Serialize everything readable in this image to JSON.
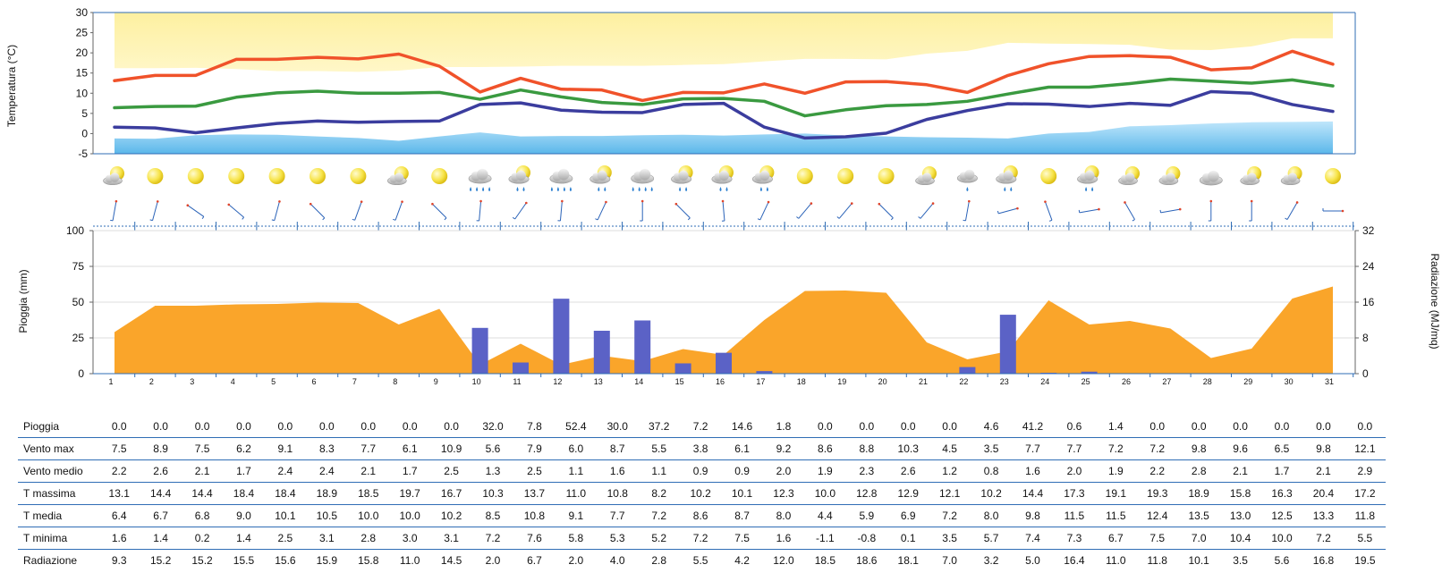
{
  "colors": {
    "tmax": "#f0522a",
    "tmed": "#3a9a40",
    "tmin": "#3b3d9e",
    "climate_max_band": "#fdf3a8",
    "climate_min_band": "#7ec8f0",
    "rain_bars": "#5b62c6",
    "radiation_area": "#faa52a",
    "row_separator": "#2f6db5"
  },
  "chart_data": [
    {
      "type": "line",
      "ylabel": "Temperatura (°C)",
      "ylim": [
        -5,
        30
      ],
      "yticks": [
        "30",
        "25",
        "20",
        "15",
        "10",
        "5",
        "0",
        "-5"
      ],
      "x": [
        1,
        2,
        3,
        4,
        5,
        6,
        7,
        8,
        9,
        10,
        11,
        12,
        13,
        14,
        15,
        16,
        17,
        18,
        19,
        20,
        21,
        22,
        23,
        24,
        25,
        26,
        27,
        28,
        29,
        30,
        31
      ],
      "series": [
        {
          "key": "tmax",
          "values": [
            13.1,
            14.4,
            14.4,
            18.4,
            18.4,
            18.9,
            18.5,
            19.7,
            16.7,
            10.3,
            13.7,
            11.0,
            10.8,
            8.2,
            10.2,
            10.1,
            12.3,
            10.0,
            12.8,
            12.9,
            12.1,
            10.2,
            14.4,
            17.3,
            19.1,
            19.3,
            18.9,
            15.8,
            16.3,
            20.4,
            17.2
          ]
        },
        {
          "key": "tmed",
          "values": [
            6.4,
            6.7,
            6.8,
            9.0,
            10.1,
            10.5,
            10.0,
            10.0,
            10.2,
            8.5,
            10.8,
            9.1,
            7.7,
            7.2,
            8.6,
            8.7,
            8.0,
            4.4,
            5.9,
            6.9,
            7.2,
            8.0,
            9.8,
            11.5,
            11.5,
            12.4,
            13.5,
            13.0,
            12.5,
            13.3,
            11.8
          ]
        },
        {
          "key": "tmin",
          "values": [
            1.6,
            1.4,
            0.2,
            1.4,
            2.5,
            3.1,
            2.8,
            3.0,
            3.1,
            7.2,
            7.6,
            5.8,
            5.3,
            5.2,
            7.2,
            7.5,
            1.6,
            -1.1,
            -0.8,
            0.1,
            3.5,
            5.7,
            7.4,
            7.3,
            6.7,
            7.5,
            7.0,
            10.4,
            10.0,
            7.2,
            5.5
          ]
        }
      ],
      "climate_max_band": {
        "top": [
          30,
          30,
          30,
          30,
          30,
          30,
          30,
          30,
          30,
          30,
          30,
          30,
          30,
          30,
          30,
          30,
          30,
          30,
          30,
          30,
          30,
          30,
          30,
          30,
          30,
          30,
          30,
          30,
          30,
          30,
          30
        ],
        "bottom": [
          16.2,
          16.2,
          16.3,
          16.0,
          15.5,
          15.5,
          15.3,
          15.6,
          16.5,
          16.5,
          16.6,
          16.8,
          16.8,
          16.8,
          17.0,
          17.2,
          17.9,
          18.5,
          18.5,
          18.4,
          19.8,
          20.5,
          22.5,
          22.3,
          22.2,
          22.0,
          20.8,
          20.7,
          21.6,
          23.6,
          23.6
        ]
      },
      "climate_min_band": {
        "top": [
          -1.2,
          -1.3,
          -0.4,
          -0.2,
          -0.3,
          -0.7,
          -1.1,
          -1.8,
          -0.7,
          0.3,
          -0.7,
          -0.6,
          -0.6,
          -0.4,
          -0.3,
          -0.5,
          -0.2,
          0.0,
          -0.5,
          -0.7,
          -0.9,
          -1.0,
          -1.2,
          0.0,
          0.4,
          1.8,
          2.1,
          2.5,
          2.8,
          2.9,
          3.0
        ],
        "bottom": [
          -5,
          -5,
          -5,
          -5,
          -5,
          -5,
          -5,
          -5,
          -5,
          -5,
          -5,
          -5,
          -5,
          -5,
          -5,
          -5,
          -5,
          -5,
          -5,
          -5,
          -5,
          -5,
          -5,
          -5,
          -5,
          -5,
          -5,
          -5,
          -5,
          -5,
          -5
        ]
      }
    },
    {
      "type": "bar",
      "ylabel": "Pioggia (mm)",
      "y2label": "Radiazione (MJ/mq)",
      "ylim": [
        0,
        100
      ],
      "y2lim": [
        0,
        32
      ],
      "yticks": [
        "100",
        "75",
        "50",
        "25",
        "0"
      ],
      "y2ticks": [
        "32",
        "24",
        "16",
        "8",
        "0"
      ],
      "categories": [
        "1",
        "2",
        "3",
        "4",
        "5",
        "6",
        "7",
        "8",
        "9",
        "10",
        "11",
        "12",
        "13",
        "14",
        "15",
        "16",
        "17",
        "18",
        "19",
        "20",
        "21",
        "22",
        "23",
        "24",
        "25",
        "26",
        "27",
        "28",
        "29",
        "30",
        "31"
      ],
      "rain_values": [
        0.0,
        0.0,
        0.0,
        0.0,
        0.0,
        0.0,
        0.0,
        0.0,
        0.0,
        32.0,
        7.8,
        52.4,
        30.0,
        37.2,
        7.2,
        14.6,
        1.8,
        0.0,
        0.0,
        0.0,
        0.0,
        4.6,
        41.2,
        0.6,
        1.4,
        0.0,
        0.0,
        0.0,
        0.0,
        0.0,
        0.0
      ],
      "radiation_values": [
        9.3,
        15.2,
        15.2,
        15.5,
        15.6,
        15.9,
        15.8,
        11.0,
        14.5,
        2.0,
        6.7,
        2.0,
        4.0,
        2.8,
        5.5,
        4.2,
        12.0,
        18.5,
        18.6,
        18.1,
        7.0,
        3.2,
        5.0,
        16.4,
        11.0,
        11.8,
        10.1,
        3.5,
        5.6,
        16.8,
        19.5
      ]
    },
    {
      "type": "table",
      "rows": [
        {
          "label": "Pioggia",
          "values": [
            "0.0",
            "0.0",
            "0.0",
            "0.0",
            "0.0",
            "0.0",
            "0.0",
            "0.0",
            "0.0",
            "32.0",
            "7.8",
            "52.4",
            "30.0",
            "37.2",
            "7.2",
            "14.6",
            "1.8",
            "0.0",
            "0.0",
            "0.0",
            "0.0",
            "4.6",
            "41.2",
            "0.6",
            "1.4",
            "0.0",
            "0.0",
            "0.0",
            "0.0",
            "0.0",
            "0.0"
          ]
        },
        {
          "label": "Vento max",
          "values": [
            "7.5",
            "8.9",
            "7.5",
            "6.2",
            "9.1",
            "8.3",
            "7.7",
            "6.1",
            "10.9",
            "5.6",
            "7.9",
            "6.0",
            "8.7",
            "5.5",
            "3.8",
            "6.1",
            "9.2",
            "8.6",
            "8.8",
            "10.3",
            "4.5",
            "3.5",
            "7.7",
            "7.7",
            "7.2",
            "7.2",
            "9.8",
            "9.6",
            "6.5",
            "9.8",
            "12.1"
          ]
        },
        {
          "label": "Vento medio",
          "values": [
            "2.2",
            "2.6",
            "2.1",
            "1.7",
            "2.4",
            "2.4",
            "2.1",
            "1.7",
            "2.5",
            "1.3",
            "2.5",
            "1.1",
            "1.6",
            "1.1",
            "0.9",
            "0.9",
            "2.0",
            "1.9",
            "2.3",
            "2.6",
            "1.2",
            "0.8",
            "1.6",
            "2.0",
            "1.9",
            "2.2",
            "2.8",
            "2.1",
            "1.7",
            "2.1",
            "2.9"
          ]
        },
        {
          "label": "T massima",
          "values": [
            "13.1",
            "14.4",
            "14.4",
            "18.4",
            "18.4",
            "18.9",
            "18.5",
            "19.7",
            "16.7",
            "10.3",
            "13.7",
            "11.0",
            "10.8",
            "8.2",
            "10.2",
            "10.1",
            "12.3",
            "10.0",
            "12.8",
            "12.9",
            "12.1",
            "10.2",
            "14.4",
            "17.3",
            "19.1",
            "19.3",
            "18.9",
            "15.8",
            "16.3",
            "20.4",
            "17.2"
          ]
        },
        {
          "label": "T media",
          "values": [
            "6.4",
            "6.7",
            "6.8",
            "9.0",
            "10.1",
            "10.5",
            "10.0",
            "10.0",
            "10.2",
            "8.5",
            "10.8",
            "9.1",
            "7.7",
            "7.2",
            "8.6",
            "8.7",
            "8.0",
            "4.4",
            "5.9",
            "6.9",
            "7.2",
            "8.0",
            "9.8",
            "11.5",
            "11.5",
            "12.4",
            "13.5",
            "13.0",
            "12.5",
            "13.3",
            "11.8"
          ]
        },
        {
          "label": "T minima",
          "values": [
            "1.6",
            "1.4",
            "0.2",
            "1.4",
            "2.5",
            "3.1",
            "2.8",
            "3.0",
            "3.1",
            "7.2",
            "7.6",
            "5.8",
            "5.3",
            "5.2",
            "7.2",
            "7.5",
            "1.6",
            "-1.1",
            "-0.8",
            "0.1",
            "3.5",
            "5.7",
            "7.4",
            "7.3",
            "6.7",
            "7.5",
            "7.0",
            "10.4",
            "10.0",
            "7.2",
            "5.5"
          ]
        },
        {
          "label": "Radiazione",
          "values": [
            "9.3",
            "15.2",
            "15.2",
            "15.5",
            "15.6",
            "15.9",
            "15.8",
            "11.0",
            "14.5",
            "2.0",
            "6.7",
            "2.0",
            "4.0",
            "2.8",
            "5.5",
            "4.2",
            "12.0",
            "18.5",
            "18.6",
            "18.1",
            "7.0",
            "3.2",
            "5.0",
            "16.4",
            "11.0",
            "11.8",
            "10.1",
            "3.5",
            "5.6",
            "16.8",
            "19.5"
          ]
        }
      ]
    }
  ],
  "weather_icons": [
    "sun-cloud",
    "sun",
    "sun",
    "sun",
    "sun",
    "sun",
    "sun",
    "sun-cloud",
    "sun",
    "rain",
    "sun-cloud-rain",
    "rain",
    "sun-cloud-rain",
    "rain",
    "sun-cloud-rain",
    "sun-cloud-rain",
    "sun-cloud-rain",
    "sun",
    "sun",
    "sun",
    "sun-cloud",
    "cloud-rain",
    "sun-cloud-rain",
    "sun",
    "sun-cloud-rain",
    "sun-cloud",
    "sun-cloud",
    "cloud",
    "sun-cloud",
    "sun-cloud",
    "sun"
  ],
  "wind_directions_deg": [
    100,
    105,
    35,
    40,
    105,
    45,
    110,
    110,
    45,
    95,
    125,
    95,
    115,
    90,
    45,
    85,
    115,
    130,
    130,
    45,
    130,
    100,
    165,
    70,
    170,
    60,
    170,
    90,
    90,
    120,
    180
  ]
}
